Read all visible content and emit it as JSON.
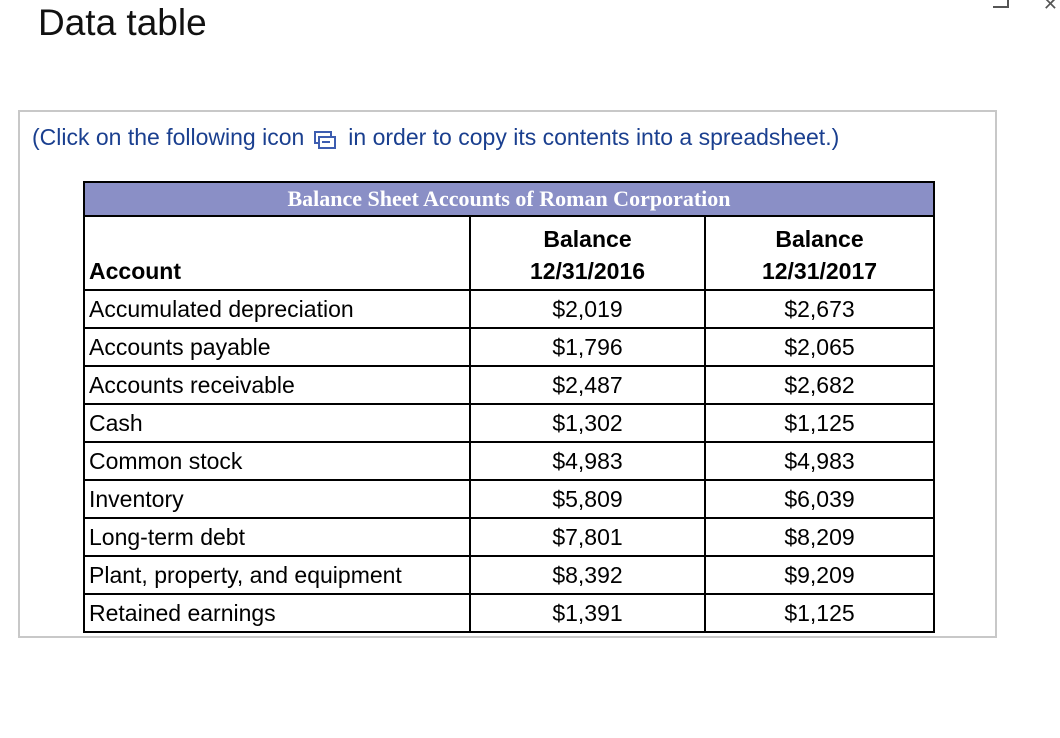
{
  "window": {
    "title": "Data table"
  },
  "instruction": {
    "before_icon": "(Click on the following icon",
    "after_icon": "in order to copy its contents into a spreadsheet.)",
    "icon": "copy-to-spreadsheet-icon"
  },
  "table": {
    "caption": "Balance Sheet Accounts of Roman Corporation",
    "headers": {
      "account": "Account",
      "col1_line1": "Balance",
      "col1_line2": "12/31/2016",
      "col2_line1": "Balance",
      "col2_line2": "12/31/2017"
    },
    "rows": [
      {
        "account": "Accumulated depreciation",
        "b2016": "$2,019",
        "b2017": "$2,673"
      },
      {
        "account": "Accounts payable",
        "b2016": "$1,796",
        "b2017": "$2,065"
      },
      {
        "account": "Accounts receivable",
        "b2016": "$2,487",
        "b2017": "$2,682"
      },
      {
        "account": "Cash",
        "b2016": "$1,302",
        "b2017": "$1,125"
      },
      {
        "account": "Common stock",
        "b2016": "$4,983",
        "b2017": "$4,983"
      },
      {
        "account": "Inventory",
        "b2016": "$5,809",
        "b2017": "$6,039"
      },
      {
        "account": "Long-term debt",
        "b2016": "$7,801",
        "b2017": "$8,209"
      },
      {
        "account": "Plant, property, and equipment",
        "b2016": "$8,392",
        "b2017": "$9,209"
      },
      {
        "account": "Retained earnings",
        "b2016": "$1,391",
        "b2017": "$1,125"
      }
    ]
  },
  "colors": {
    "caption_bg": "#8a8fc6",
    "instruction_text": "#1a3f8f",
    "panel_border": "#c8c8c8"
  }
}
